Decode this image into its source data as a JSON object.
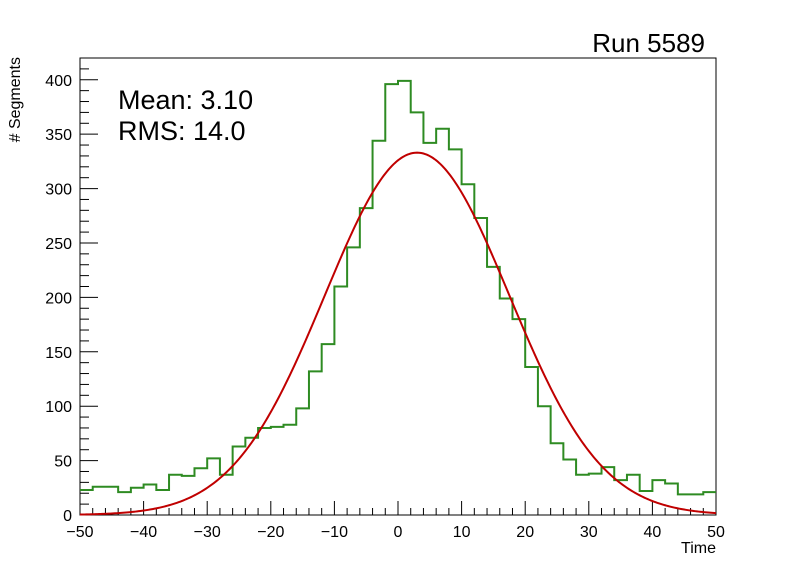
{
  "chart_data": {
    "type": "histogram",
    "title": "Run 5589",
    "xlabel": "Time",
    "ylabel": "# Segments",
    "xlim": [
      -50,
      50
    ],
    "ylim": [
      0,
      420
    ],
    "xticks": [
      -50,
      -40,
      -30,
      -20,
      -10,
      0,
      10,
      20,
      30,
      40,
      50
    ],
    "xtick_labels": [
      "−50",
      "−40",
      "−30",
      "−20",
      "−10",
      "0",
      "10",
      "20",
      "30",
      "40",
      "50"
    ],
    "yticks": [
      0,
      50,
      100,
      150,
      200,
      250,
      300,
      350,
      400
    ],
    "ytick_labels": [
      "0",
      "50",
      "100",
      "150",
      "200",
      "250",
      "300",
      "350",
      "400"
    ],
    "stats": {
      "mean_line": "Mean: 3.10",
      "rms_line": "RMS:  14.0"
    },
    "histogram": {
      "bin_low": -50,
      "bin_width": 2,
      "color": "#2e8b22",
      "counts": [
        23,
        26,
        26,
        21,
        25,
        28,
        23,
        37,
        36,
        43,
        52,
        37,
        63,
        71,
        80,
        81,
        83,
        98,
        132,
        157,
        210,
        246,
        282,
        344,
        396,
        399,
        370,
        342,
        355,
        336,
        304,
        273,
        228,
        199,
        180,
        136,
        100,
        66,
        51,
        37,
        38,
        44,
        32,
        37,
        22,
        32,
        29,
        19,
        19,
        21
      ]
    },
    "fit": {
      "type": "gaussian",
      "color": "#c00000",
      "constant": 333,
      "mean": 3.0,
      "sigma": 14.5
    }
  }
}
